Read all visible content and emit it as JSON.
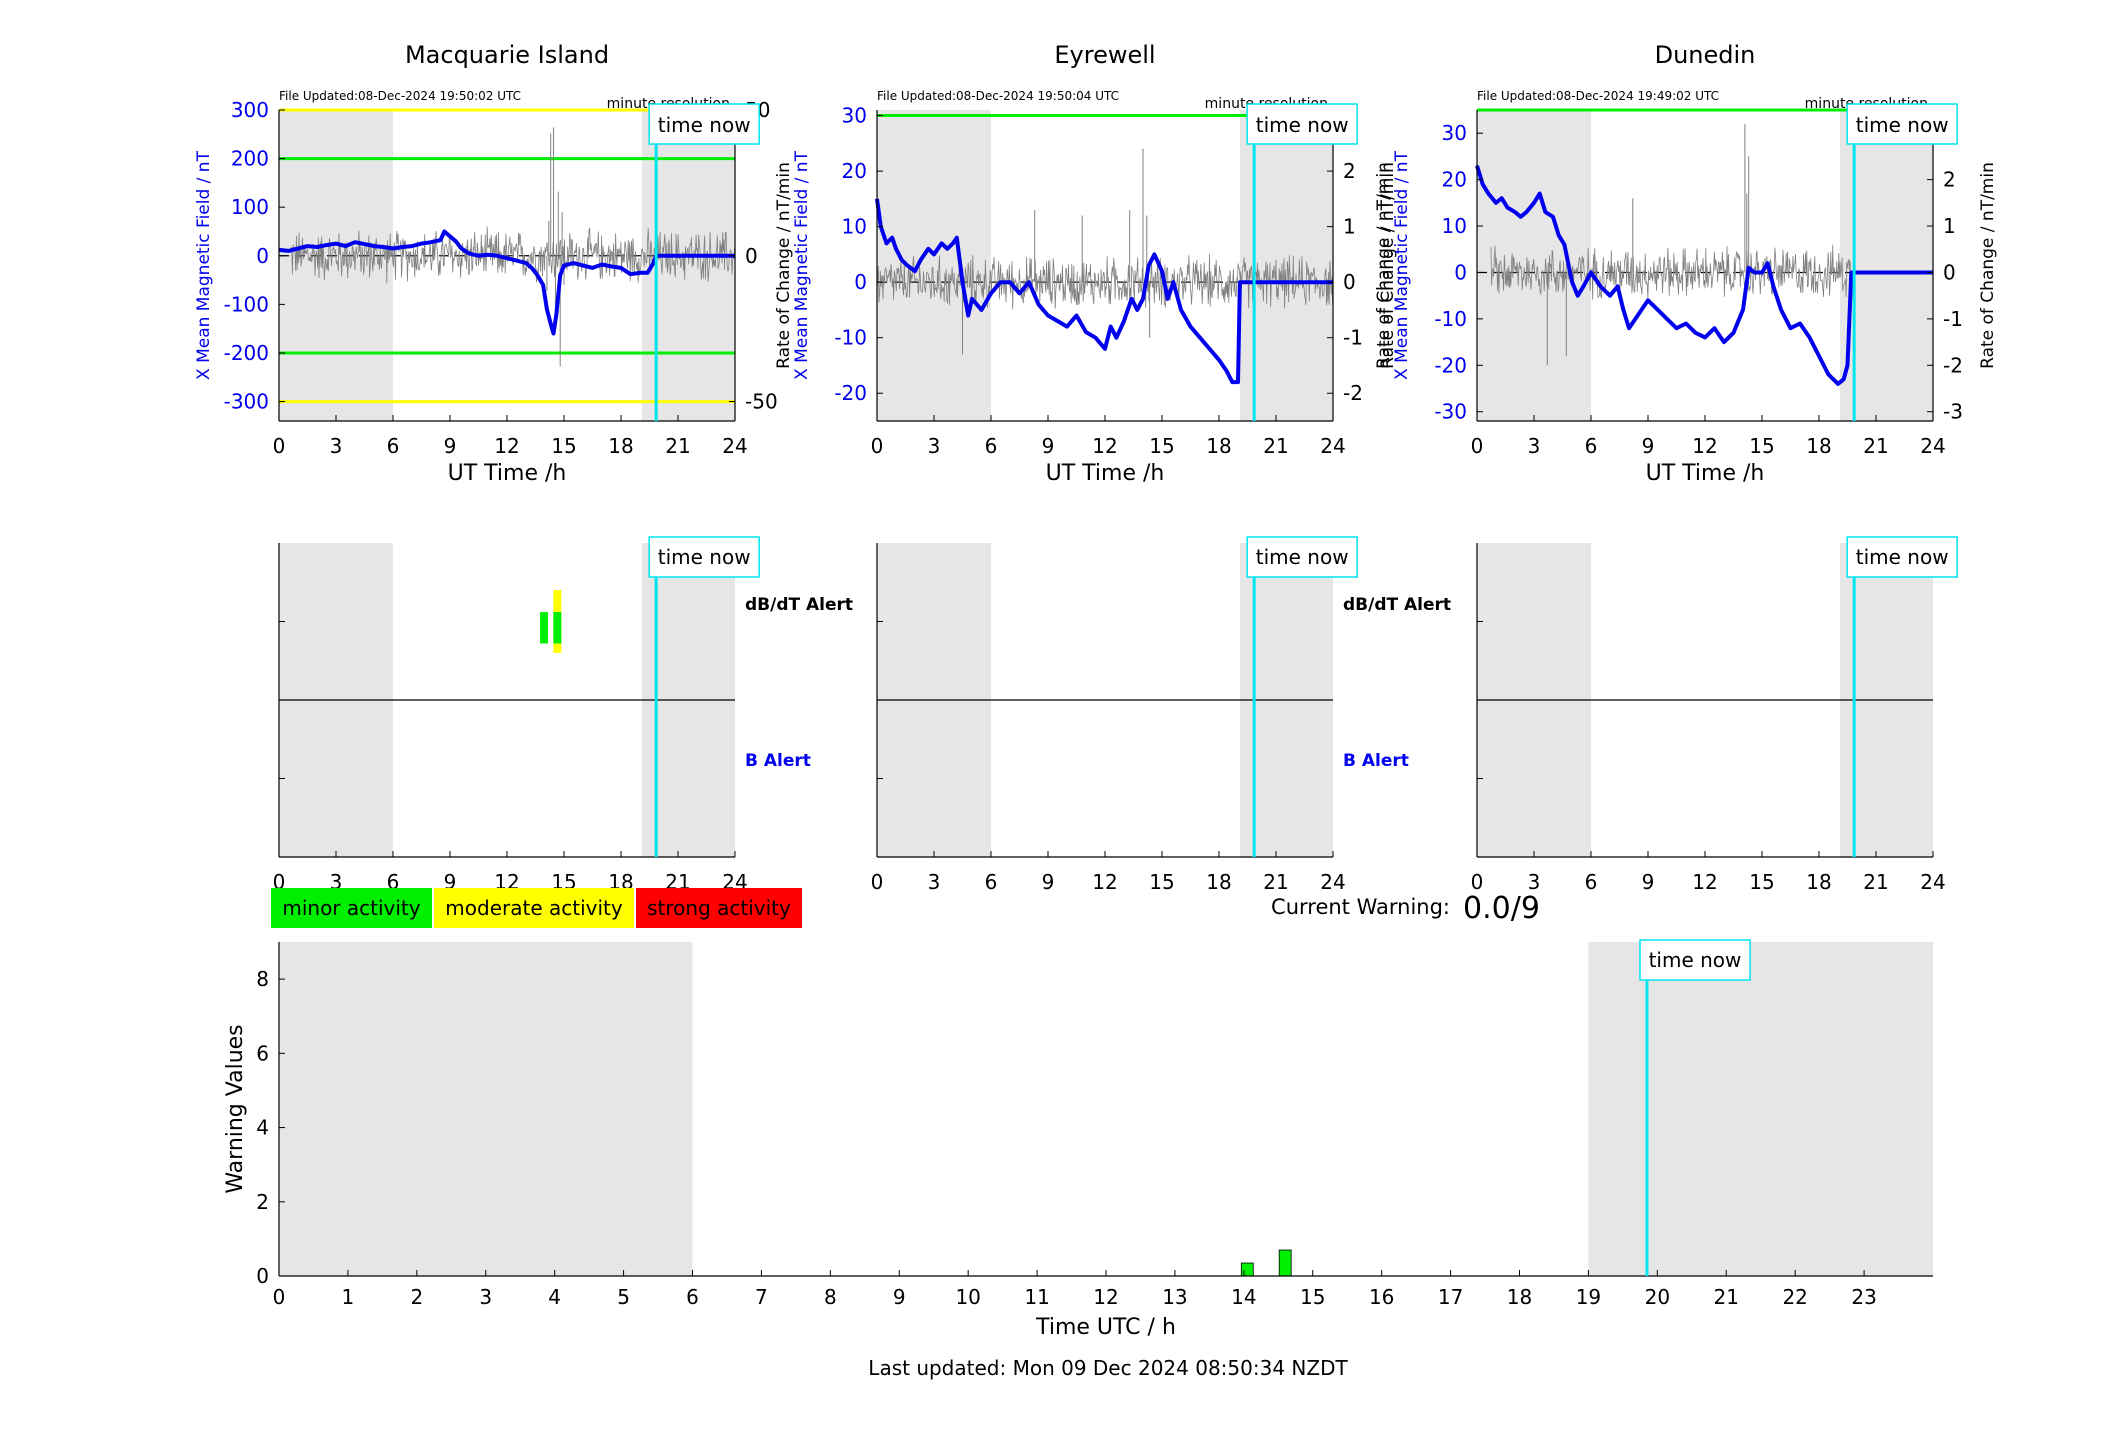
{
  "stations": [
    {
      "name": "Macquarie Island",
      "file_updated": "File Updated:08-Dec-2024 19:50:02 UTC",
      "resolution": "minute resolution",
      "ylabel": "X Mean Magnetic Field / nT",
      "ylabel2": "",
      "ylim": [
        -340,
        300
      ],
      "yticks": [
        -300,
        -200,
        -100,
        0,
        100,
        200,
        300
      ],
      "y2lim": [
        -56.6667,
        50
      ],
      "y2ticks": [
        -50,
        0,
        50
      ],
      "thresholds": [
        {
          "value": 300,
          "color": "#ffff00"
        },
        {
          "value": 200,
          "color": "#00ee00"
        },
        {
          "value": -200,
          "color": "#00ee00"
        },
        {
          "value": -300,
          "color": "#ffff00"
        }
      ],
      "night_bands": [
        [
          0,
          6
        ],
        [
          19.1,
          24
        ]
      ],
      "b_series": [
        [
          0,
          12
        ],
        [
          0.5,
          10
        ],
        [
          1,
          15
        ],
        [
          1.5,
          20
        ],
        [
          2,
          18
        ],
        [
          2.5,
          22
        ],
        [
          3,
          25
        ],
        [
          3.5,
          20
        ],
        [
          4,
          28
        ],
        [
          4.5,
          24
        ],
        [
          5,
          20
        ],
        [
          5.5,
          18
        ],
        [
          6,
          15
        ],
        [
          6.5,
          18
        ],
        [
          7,
          20
        ],
        [
          7.5,
          25
        ],
        [
          8,
          28
        ],
        [
          8.5,
          32
        ],
        [
          8.7,
          50
        ],
        [
          9,
          40
        ],
        [
          9.3,
          30
        ],
        [
          9.6,
          15
        ],
        [
          10,
          5
        ],
        [
          10.5,
          0
        ],
        [
          11,
          2
        ],
        [
          11.5,
          0
        ],
        [
          12,
          -5
        ],
        [
          12.5,
          -10
        ],
        [
          13,
          -15
        ],
        [
          13.3,
          -25
        ],
        [
          13.6,
          -40
        ],
        [
          13.9,
          -60
        ],
        [
          14.1,
          -110
        ],
        [
          14.3,
          -140
        ],
        [
          14.45,
          -160
        ],
        [
          14.6,
          -120
        ],
        [
          14.8,
          -40
        ],
        [
          15,
          -20
        ],
        [
          15.5,
          -15
        ],
        [
          16,
          -20
        ],
        [
          16.5,
          -25
        ],
        [
          17,
          -18
        ],
        [
          17.5,
          -22
        ],
        [
          18,
          -25
        ],
        [
          18.5,
          -38
        ],
        [
          19,
          -35
        ],
        [
          19.4,
          -35
        ],
        [
          19.7,
          -15
        ],
        [
          19.85,
          0
        ],
        [
          24,
          0
        ]
      ],
      "db_noise": [
        0.6,
        24.0
      ],
      "db_spikes": [
        [
          14.1,
          -12
        ],
        [
          14.2,
          12
        ],
        [
          14.3,
          42
        ],
        [
          14.45,
          44
        ],
        [
          14.55,
          -20
        ],
        [
          14.7,
          22
        ],
        [
          14.8,
          -38
        ],
        [
          14.9,
          15
        ],
        [
          15,
          -10
        ]
      ],
      "alert_bars": [
        {
          "x": 13.95,
          "y0": 0.68,
          "y1": 0.78,
          "color": "#00ee00"
        },
        {
          "x": 14.65,
          "y0": 0.65,
          "y1": 0.85,
          "color": "#ffff00"
        },
        {
          "x": 14.65,
          "y0": 0.68,
          "y1": 0.78,
          "color": "#00ee00"
        }
      ]
    },
    {
      "name": "Eyrewell",
      "file_updated": "File Updated:08-Dec-2024 19:50:04 UTC",
      "resolution": "minute resolution",
      "ylabel": "X Mean Magnetic Field / nT",
      "ylabel2": "Rate of Change / nT/min",
      "ylim": [
        -25,
        31
      ],
      "yticks": [
        -20,
        -10,
        0,
        10,
        20,
        30
      ],
      "y2lim": [
        -2.5,
        3.1
      ],
      "y2ticks": [
        -2,
        -1,
        0,
        1,
        2,
        3
      ],
      "thresholds": [
        {
          "value": 30,
          "color": "#00ee00"
        }
      ],
      "night_bands": [
        [
          0,
          6
        ],
        [
          19.1,
          24
        ]
      ],
      "b_series": [
        [
          0,
          15
        ],
        [
          0.2,
          10
        ],
        [
          0.5,
          7
        ],
        [
          0.8,
          8
        ],
        [
          1,
          6
        ],
        [
          1.3,
          4
        ],
        [
          1.6,
          3
        ],
        [
          2,
          2
        ],
        [
          2.3,
          4
        ],
        [
          2.7,
          6
        ],
        [
          3,
          5
        ],
        [
          3.4,
          7
        ],
        [
          3.7,
          6
        ],
        [
          4,
          7
        ],
        [
          4.2,
          8
        ],
        [
          4.5,
          0
        ],
        [
          4.8,
          -6
        ],
        [
          5,
          -3
        ],
        [
          5.5,
          -5
        ],
        [
          6,
          -2
        ],
        [
          6.5,
          0
        ],
        [
          7,
          0
        ],
        [
          7.5,
          -2
        ],
        [
          8,
          0
        ],
        [
          8.5,
          -4
        ],
        [
          9,
          -6
        ],
        [
          9.5,
          -7
        ],
        [
          10,
          -8
        ],
        [
          10.5,
          -6
        ],
        [
          11,
          -9
        ],
        [
          11.5,
          -10
        ],
        [
          12,
          -12
        ],
        [
          12.3,
          -8
        ],
        [
          12.6,
          -10
        ],
        [
          13,
          -7
        ],
        [
          13.4,
          -3
        ],
        [
          13.7,
          -5
        ],
        [
          14,
          -3
        ],
        [
          14.3,
          3
        ],
        [
          14.6,
          5
        ],
        [
          15,
          2
        ],
        [
          15.3,
          -3
        ],
        [
          15.6,
          0
        ],
        [
          16,
          -5
        ],
        [
          16.5,
          -8
        ],
        [
          17,
          -10
        ],
        [
          17.5,
          -12
        ],
        [
          18,
          -14
        ],
        [
          18.4,
          -16
        ],
        [
          18.7,
          -18
        ],
        [
          19,
          -18
        ],
        [
          19.1,
          0
        ],
        [
          24,
          0
        ]
      ],
      "db_noise": [
        0.0,
        24.0
      ],
      "db_spikes": [
        [
          14,
          2.4
        ],
        [
          14.2,
          1.2
        ],
        [
          14.35,
          -1.0
        ],
        [
          4.5,
          -1.3
        ],
        [
          8.3,
          1.3
        ],
        [
          10.8,
          1.2
        ],
        [
          13.3,
          1.3
        ]
      ],
      "alert_bars": []
    },
    {
      "name": "Dunedin",
      "file_updated": "File Updated:08-Dec-2024 19:49:02 UTC",
      "resolution": "minute resolution",
      "ylabel": "X Mean Magnetic Field / nT",
      "ylabel2": "Rate of Change / nT/min",
      "ylim": [
        -32,
        35
      ],
      "yticks": [
        -30,
        -20,
        -10,
        0,
        10,
        20,
        30
      ],
      "y2lim": [
        -3.2,
        3.5
      ],
      "y2ticks": [
        -3,
        -2,
        -1,
        0,
        1,
        2,
        3
      ],
      "thresholds": [
        {
          "value": 35,
          "color": "#00ee00"
        }
      ],
      "night_bands": [
        [
          0,
          6
        ],
        [
          19.1,
          24
        ]
      ],
      "b_series": [
        [
          0,
          23
        ],
        [
          0.3,
          19
        ],
        [
          0.6,
          17
        ],
        [
          1,
          15
        ],
        [
          1.3,
          16
        ],
        [
          1.6,
          14
        ],
        [
          2,
          13
        ],
        [
          2.3,
          12
        ],
        [
          2.6,
          13
        ],
        [
          3,
          15
        ],
        [
          3.3,
          17
        ],
        [
          3.6,
          13
        ],
        [
          4,
          12
        ],
        [
          4.3,
          8
        ],
        [
          4.6,
          6
        ],
        [
          5,
          -2
        ],
        [
          5.3,
          -5
        ],
        [
          5.6,
          -3
        ],
        [
          6,
          0
        ],
        [
          6.5,
          -3
        ],
        [
          7,
          -5
        ],
        [
          7.4,
          -3
        ],
        [
          7.7,
          -8
        ],
        [
          8,
          -12
        ],
        [
          8.5,
          -9
        ],
        [
          9,
          -6
        ],
        [
          9.5,
          -8
        ],
        [
          10,
          -10
        ],
        [
          10.5,
          -12
        ],
        [
          11,
          -11
        ],
        [
          11.5,
          -13
        ],
        [
          12,
          -14
        ],
        [
          12.5,
          -12
        ],
        [
          13,
          -15
        ],
        [
          13.5,
          -13
        ],
        [
          14,
          -8
        ],
        [
          14.3,
          1
        ],
        [
          14.6,
          0
        ],
        [
          15,
          0
        ],
        [
          15.3,
          2
        ],
        [
          15.6,
          -3
        ],
        [
          16,
          -8
        ],
        [
          16.5,
          -12
        ],
        [
          17,
          -11
        ],
        [
          17.5,
          -14
        ],
        [
          18,
          -18
        ],
        [
          18.5,
          -22
        ],
        [
          19,
          -24
        ],
        [
          19.3,
          -23
        ],
        [
          19.5,
          -20
        ],
        [
          19.7,
          0
        ],
        [
          24,
          0
        ]
      ],
      "db_noise": [
        0.7,
        19.7
      ],
      "db_spikes": [
        [
          14.1,
          3.2
        ],
        [
          14.2,
          1.7
        ],
        [
          14.3,
          2.5
        ],
        [
          8.2,
          1.6
        ],
        [
          3.7,
          -2.0
        ],
        [
          4.7,
          -1.8
        ]
      ],
      "alert_bars": []
    }
  ],
  "alert_labels": {
    "db": "dB/dT Alert",
    "b": "B Alert"
  },
  "time_now_label": "time now",
  "time_now_hour": 19.85,
  "xlabel": "UT Time /h",
  "xticks": [
    0,
    3,
    6,
    9,
    12,
    15,
    18,
    21,
    24
  ],
  "legend": [
    {
      "label": "minor activity",
      "color": "#00ee00"
    },
    {
      "label": "moderate activity",
      "color": "#ffff00"
    },
    {
      "label": "strong activity",
      "color": "#ff0000"
    }
  ],
  "current_warning": {
    "label": "Current Warning:",
    "value": "0.0/9"
  },
  "chart_data": {
    "type": "bar",
    "ylabel": "Warning Values",
    "xlabel": "Time UTC / h",
    "xlim": [
      0,
      24
    ],
    "ylim": [
      0,
      9
    ],
    "yticks": [
      0,
      2,
      4,
      6,
      8
    ],
    "xticks": [
      0,
      1,
      2,
      3,
      4,
      5,
      6,
      7,
      8,
      9,
      10,
      11,
      12,
      13,
      14,
      15,
      16,
      17,
      18,
      19,
      20,
      21,
      22,
      23
    ],
    "night_bands": [
      [
        0,
        6
      ],
      [
        19,
        24
      ]
    ],
    "bars": [
      {
        "x": 14.05,
        "value": 0.35,
        "color": "#00ee00"
      },
      {
        "x": 14.6,
        "value": 0.7,
        "color": "#00ee00"
      }
    ]
  },
  "footer": "Last updated: Mon 09 Dec 2024 08:50:34 NZDT"
}
